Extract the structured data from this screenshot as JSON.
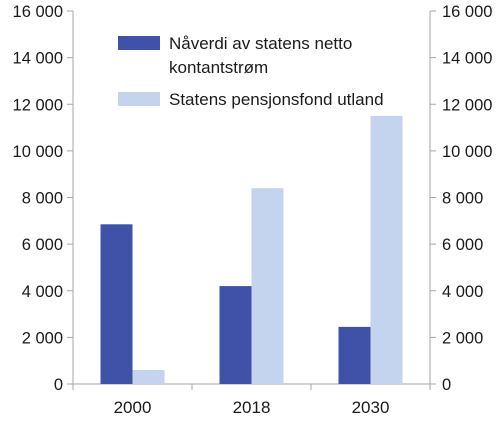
{
  "chart_data": {
    "type": "bar",
    "categories": [
      "2000",
      "2018",
      "2030"
    ],
    "series": [
      {
        "name": "Nåverdi av statens netto kontantstrøm",
        "legend_lines": [
          "Nåverdi av statens netto",
          "kontantstrøm"
        ],
        "color": "#3f52a8",
        "values": [
          6850,
          4200,
          2450
        ]
      },
      {
        "name": "Statens pensjonsfond utland",
        "legend_lines": [
          "Statens pensjonsfond utland"
        ],
        "color": "#c4d3ee",
        "values": [
          600,
          8400,
          11500
        ]
      }
    ],
    "ylim": [
      0,
      16000
    ],
    "yticks": [
      0,
      2000,
      4000,
      6000,
      8000,
      10000,
      12000,
      14000,
      16000
    ],
    "ytick_labels": [
      "0",
      "2 000",
      "4 000",
      "6 000",
      "8 000",
      "10 000",
      "12 000",
      "14 000",
      "16 000"
    ],
    "grid": false,
    "legend_position": "top-right",
    "axis_color": "#a6a6a6"
  }
}
